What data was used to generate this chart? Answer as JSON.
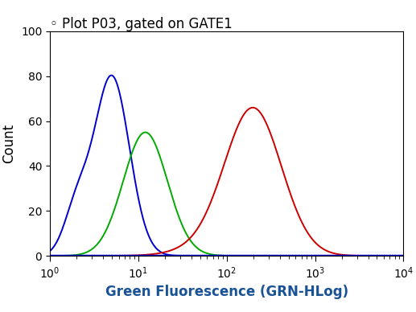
{
  "title": "Plot P03, gated on GATE1",
  "title_symbol": "◦",
  "xlabel": "Green Fluorescence (GRN-HLog)",
  "ylabel": "Count",
  "xlim_log": [
    1,
    10000
  ],
  "ylim": [
    0,
    100
  ],
  "yticks": [
    0,
    20,
    40,
    60,
    80,
    100
  ],
  "background_color": "#ffffff",
  "blue_color": "#0000cc",
  "green_color": "#00aa00",
  "red_color": "#cc0000",
  "blue_peak_x": 5.0,
  "blue_peak_y": 80,
  "blue_sigma": 0.2,
  "blue_shoulder_x": 2.0,
  "blue_shoulder_y": 20,
  "blue_shoulder_sigma": 0.14,
  "green_peak_x": 12.0,
  "green_peak_y": 55,
  "green_sigma": 0.25,
  "red_peak_x": 200,
  "red_peak_y": 65,
  "red_sigma": 0.32,
  "title_fontsize": 12,
  "axis_label_fontsize": 12,
  "tick_fontsize": 10,
  "linewidth": 1.4,
  "baseline_linewidth": 2.5
}
